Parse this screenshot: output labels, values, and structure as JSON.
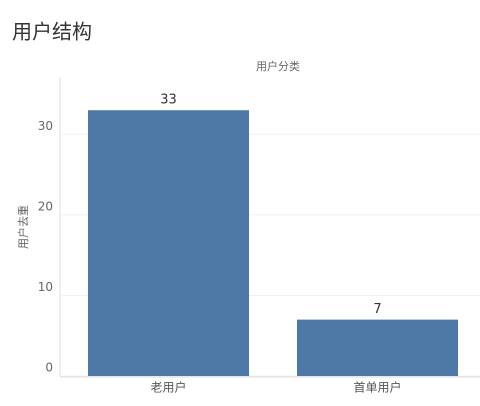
{
  "heading": "用户结构",
  "chart_data": {
    "type": "bar",
    "title": "用户分类",
    "y_label": "用户去重",
    "categories": [
      "老用户",
      "首单用户"
    ],
    "values": [
      33,
      7
    ],
    "color": "#4e79a7",
    "ylim": [
      0,
      37
    ],
    "yticks": [
      0,
      10,
      20,
      30
    ],
    "grid": true
  }
}
